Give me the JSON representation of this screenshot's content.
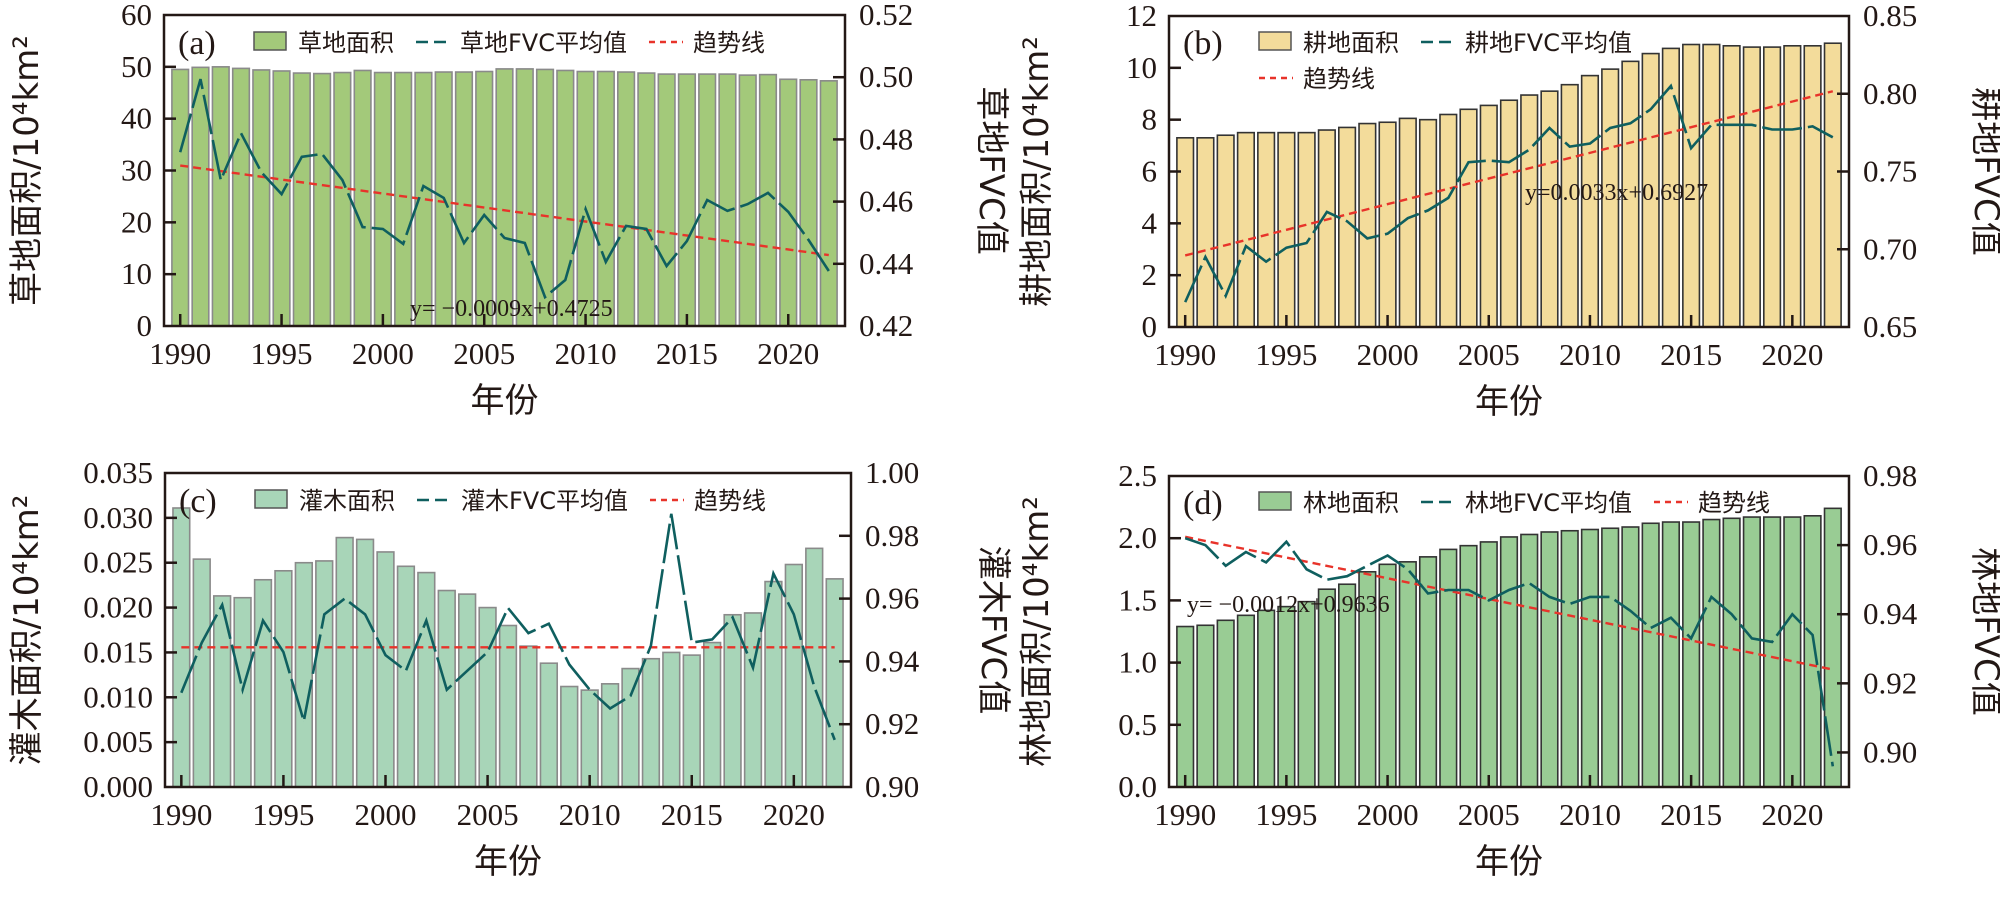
{
  "chart_data": [
    {
      "type": "bar",
      "panel_label": "(a)",
      "x": [
        1990,
        1991,
        1992,
        1993,
        1994,
        1995,
        1996,
        1997,
        1998,
        1999,
        2000,
        2001,
        2002,
        2003,
        2004,
        2005,
        2006,
        2007,
        2008,
        2009,
        2010,
        2011,
        2012,
        2013,
        2014,
        2015,
        2016,
        2017,
        2018,
        2019,
        2020,
        2021,
        2022
      ],
      "x_ticks": [
        "1990",
        "1995",
        "2000",
        "2005",
        "2010",
        "2015",
        "2020"
      ],
      "xlabel": "年份",
      "ylabel": "草地面积/10⁴km²",
      "ylabel_right": "草地FVC值",
      "ylim": [
        0,
        60
      ],
      "y_ticks": [
        "0",
        "10",
        "20",
        "30",
        "40",
        "50",
        "60"
      ],
      "ylim_right": [
        0.42,
        0.52
      ],
      "y_ticks_right": [
        "0.42",
        "0.44",
        "0.46",
        "0.48",
        "0.50",
        "0.52"
      ],
      "series": [
        {
          "name": "草地面积",
          "kind": "bar",
          "axis": "left",
          "color": "#a3c97a",
          "values": [
            49.5,
            49.9,
            50.0,
            49.7,
            49.4,
            49.2,
            48.8,
            48.7,
            48.9,
            49.3,
            48.9,
            48.9,
            48.9,
            49.0,
            49.0,
            49.1,
            49.6,
            49.6,
            49.5,
            49.3,
            49.1,
            49.1,
            49.0,
            48.8,
            48.6,
            48.6,
            48.6,
            48.6,
            48.4,
            48.5,
            47.6,
            47.5,
            47.3
          ]
        },
        {
          "name": "草地FVC平均值",
          "kind": "line",
          "axis": "right",
          "color": "#0f5f5f",
          "values": [
            0.4759,
            0.4994,
            0.4669,
            0.482,
            0.4695,
            0.4624,
            0.4744,
            0.4753,
            0.4669,
            0.4518,
            0.4512,
            0.4464,
            0.465,
            0.4612,
            0.4467,
            0.4557,
            0.4483,
            0.4467,
            0.4293,
            0.4348,
            0.4576,
            0.4406,
            0.4522,
            0.4512,
            0.4393,
            0.4473,
            0.4605,
            0.457,
            0.4592,
            0.4628,
            0.4567,
            0.4477,
            0.4377
          ]
        },
        {
          "name": "趋势线",
          "kind": "trend",
          "axis": "right",
          "color": "#e8332a",
          "slope": -0.0009,
          "intercept": 0.4725
        }
      ],
      "annotation": "y= −0.0009x+0.4725",
      "legend_position": "top",
      "grid": false
    },
    {
      "type": "bar",
      "panel_label": "(b)",
      "x": [
        1990,
        1991,
        1992,
        1993,
        1994,
        1995,
        1996,
        1997,
        1998,
        1999,
        2000,
        2001,
        2002,
        2003,
        2004,
        2005,
        2006,
        2007,
        2008,
        2009,
        2010,
        2011,
        2012,
        2013,
        2014,
        2015,
        2016,
        2017,
        2018,
        2019,
        2020,
        2021,
        2022
      ],
      "x_ticks": [
        "1990",
        "1995",
        "2000",
        "2005",
        "2010",
        "2015",
        "2020"
      ],
      "xlabel": "年份",
      "ylabel": "耕地面积/10⁴km²",
      "ylabel_right": "耕地FVC值",
      "ylim": [
        0,
        12
      ],
      "y_ticks": [
        "0",
        "2",
        "4",
        "6",
        "8",
        "10",
        "12"
      ],
      "ylim_right": [
        0.65,
        0.85
      ],
      "y_ticks_right": [
        "0.65",
        "0.70",
        "0.75",
        "0.80",
        "0.85"
      ],
      "series": [
        {
          "name": "耕地面积",
          "kind": "bar",
          "axis": "left",
          "color": "#f3dc9b",
          "values": [
            7.3,
            7.3,
            7.4,
            7.5,
            7.5,
            7.5,
            7.5,
            7.6,
            7.7,
            7.85,
            7.9,
            8.05,
            8.0,
            8.2,
            8.4,
            8.55,
            8.75,
            8.95,
            9.1,
            9.35,
            9.7,
            9.95,
            10.25,
            10.55,
            10.75,
            10.9,
            10.9,
            10.85,
            10.8,
            10.8,
            10.85,
            10.85,
            10.95
          ]
        },
        {
          "name": "耕地FVC平均值",
          "kind": "line",
          "axis": "right",
          "color": "#0f5f5f",
          "values": [
            0.666,
            0.695,
            0.67,
            0.702,
            0.692,
            0.701,
            0.704,
            0.724,
            0.718,
            0.707,
            0.71,
            0.72,
            0.725,
            0.733,
            0.756,
            0.757,
            0.756,
            0.764,
            0.778,
            0.766,
            0.768,
            0.778,
            0.781,
            0.79,
            0.805,
            0.765,
            0.78,
            0.78,
            0.78,
            0.777,
            0.777,
            0.779,
            0.772
          ]
        },
        {
          "name": "趋势线",
          "kind": "trend",
          "axis": "right",
          "color": "#e8332a",
          "slope": 0.0033,
          "intercept": 0.6927
        }
      ],
      "annotation": "y=0.0033x+0.6927",
      "legend_position": "top-left",
      "grid": false
    },
    {
      "type": "bar",
      "panel_label": "(c)",
      "x": [
        1990,
        1991,
        1992,
        1993,
        1994,
        1995,
        1996,
        1997,
        1998,
        1999,
        2000,
        2001,
        2002,
        2003,
        2004,
        2005,
        2006,
        2007,
        2008,
        2009,
        2010,
        2011,
        2012,
        2013,
        2014,
        2015,
        2016,
        2017,
        2018,
        2019,
        2020,
        2021,
        2022
      ],
      "x_ticks": [
        "1990",
        "1995",
        "2000",
        "2005",
        "2010",
        "2015",
        "2020"
      ],
      "xlabel": "年份",
      "ylabel": "灌木面积/10⁴km²",
      "ylabel_right": "灌木FVC值",
      "ylim": [
        0,
        0.035
      ],
      "y_ticks": [
        "0.000",
        "0.005",
        "0.010",
        "0.015",
        "0.020",
        "0.025",
        "0.030",
        "0.035"
      ],
      "ylim_right": [
        0.9,
        1.0
      ],
      "y_ticks_right": [
        "0.90",
        "0.92",
        "0.94",
        "0.96",
        "0.98",
        "1.00"
      ],
      "series": [
        {
          "name": "灌木面积",
          "kind": "bar",
          "axis": "left",
          "color": "#a8d5b8",
          "values": [
            0.0311,
            0.0254,
            0.0213,
            0.0211,
            0.0231,
            0.0241,
            0.025,
            0.0252,
            0.0278,
            0.0276,
            0.0262,
            0.0246,
            0.0239,
            0.0219,
            0.0215,
            0.02,
            0.018,
            0.0157,
            0.0138,
            0.0112,
            0.0108,
            0.0115,
            0.0132,
            0.0143,
            0.015,
            0.0147,
            0.0161,
            0.0192,
            0.0194,
            0.0229,
            0.0248,
            0.0266,
            0.0232
          ]
        },
        {
          "name": "灌木FVC平均值",
          "kind": "line",
          "axis": "right",
          "color": "#0f5f5f",
          "values": [
            0.93,
            0.946,
            0.958,
            0.931,
            0.953,
            0.943,
            0.921,
            0.955,
            0.96,
            0.955,
            0.942,
            0.937,
            0.953,
            0.931,
            0.937,
            0.943,
            0.957,
            0.949,
            0.952,
            0.939,
            0.931,
            0.925,
            0.929,
            0.945,
            0.987,
            0.946,
            0.947,
            0.954,
            0.938,
            0.968,
            0.955,
            0.932,
            0.915
          ]
        },
        {
          "name": "趋势线",
          "kind": "trend",
          "axis": "right",
          "color": "#e8332a",
          "slope": 0,
          "intercept": 0.9445
        }
      ],
      "annotation": "",
      "legend_position": "top",
      "grid": false
    },
    {
      "type": "bar",
      "panel_label": "(d)",
      "x": [
        1990,
        1991,
        1992,
        1993,
        1994,
        1995,
        1996,
        1997,
        1998,
        1999,
        2000,
        2001,
        2002,
        2003,
        2004,
        2005,
        2006,
        2007,
        2008,
        2009,
        2010,
        2011,
        2012,
        2013,
        2014,
        2015,
        2016,
        2017,
        2018,
        2019,
        2020,
        2021,
        2022
      ],
      "x_ticks": [
        "1990",
        "1995",
        "2000",
        "2005",
        "2010",
        "2015",
        "2020"
      ],
      "xlabel": "年份",
      "ylabel": "林地面积/10⁴km²",
      "ylabel_right": "林地FVC值",
      "ylim": [
        0,
        2.5
      ],
      "y_ticks": [
        "0.0",
        "0.5",
        "1.0",
        "1.5",
        "2.0",
        "2.5"
      ],
      "ylim_right": [
        0.89,
        0.98
      ],
      "y_ticks_right": [
        "0.90",
        "0.92",
        "0.94",
        "0.96",
        "0.98"
      ],
      "series": [
        {
          "name": "林地面积",
          "kind": "bar",
          "axis": "left",
          "color": "#99cc94",
          "values": [
            1.29,
            1.3,
            1.34,
            1.38,
            1.42,
            1.45,
            1.49,
            1.59,
            1.63,
            1.73,
            1.79,
            1.81,
            1.85,
            1.91,
            1.94,
            1.97,
            2.01,
            2.03,
            2.05,
            2.06,
            2.07,
            2.08,
            2.09,
            2.12,
            2.13,
            2.13,
            2.15,
            2.16,
            2.17,
            2.17,
            2.17,
            2.18,
            2.24
          ]
        },
        {
          "name": "林地FVC平均值",
          "kind": "line",
          "axis": "right",
          "color": "#0f5f5f",
          "values": [
            0.962,
            0.96,
            0.954,
            0.958,
            0.955,
            0.961,
            0.953,
            0.95,
            0.951,
            0.954,
            0.957,
            0.953,
            0.946,
            0.947,
            0.947,
            0.944,
            0.947,
            0.949,
            0.945,
            0.943,
            0.945,
            0.945,
            0.941,
            0.936,
            0.939,
            0.933,
            0.945,
            0.94,
            0.933,
            0.932,
            0.94,
            0.934,
            0.896
          ]
        },
        {
          "name": "趋势线",
          "kind": "trend",
          "axis": "right",
          "color": "#e8332a",
          "slope": -0.0012,
          "intercept": 0.9636
        }
      ],
      "annotation": "y= −0.0012x+0.9636",
      "legend_position": "top",
      "grid": false
    }
  ]
}
